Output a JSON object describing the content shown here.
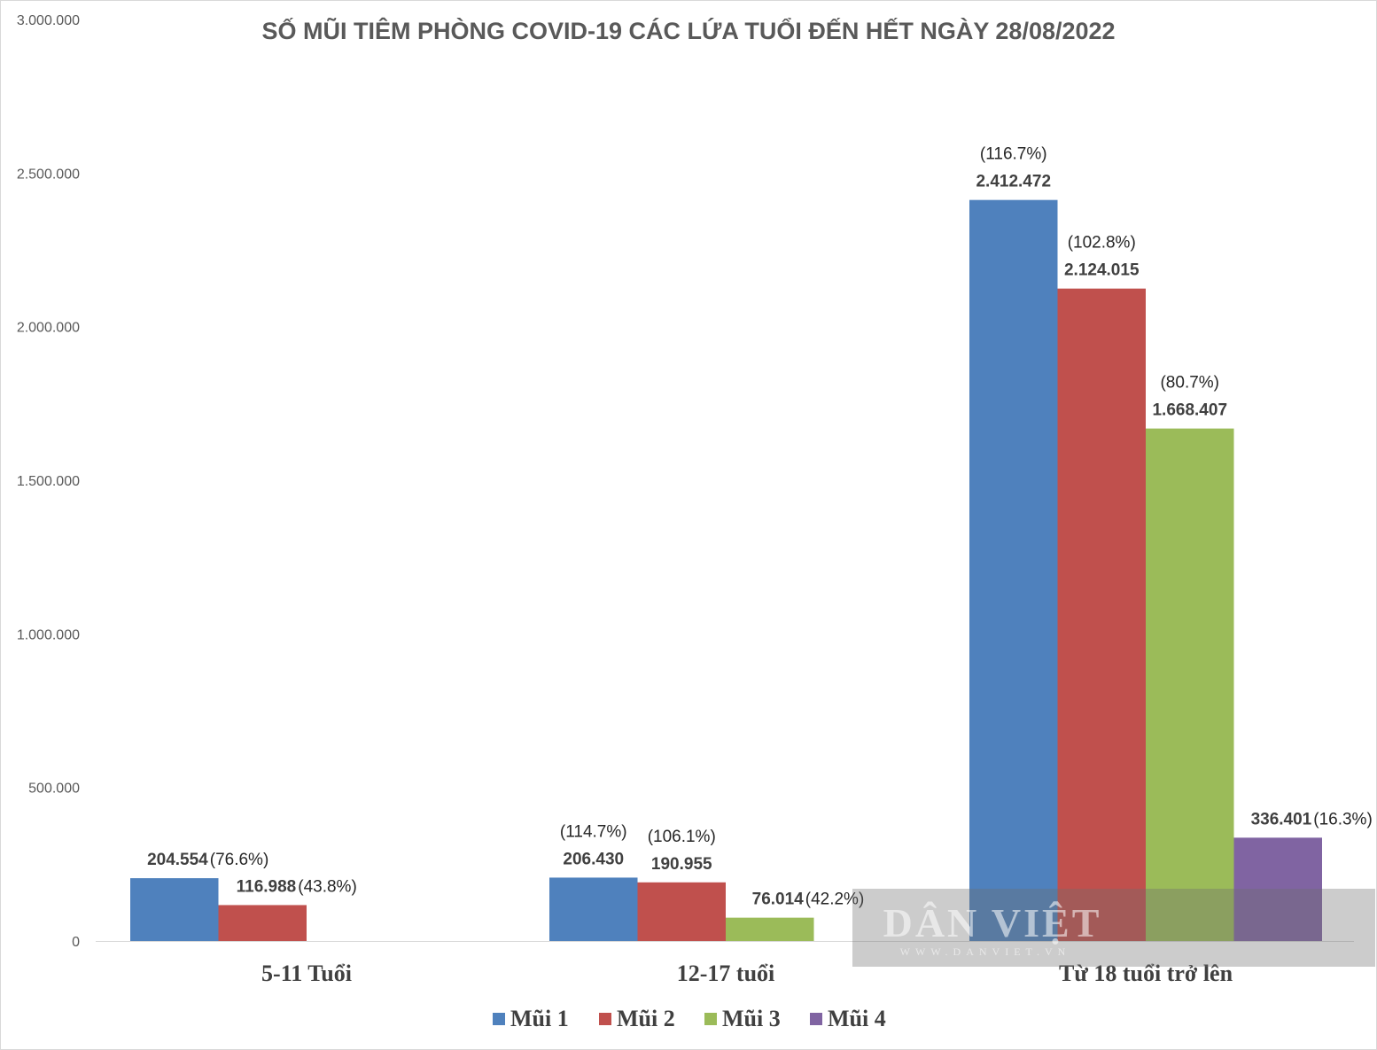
{
  "chart_data": {
    "type": "bar",
    "title": "SỐ MŨI TIÊM PHÒNG COVID-19 CÁC LỨA TUỔI ĐẾN HẾT NGÀY 28/08/2022",
    "xlabel": "",
    "ylabel": "",
    "ylim": [
      0,
      3000000
    ],
    "yticks": [
      0,
      500000,
      1000000,
      1500000,
      2000000,
      2500000,
      3000000
    ],
    "ytick_labels": [
      "0",
      "500.000",
      "1.000.000",
      "1.500.000",
      "2.000.000",
      "2.500.000",
      "3.000.000"
    ],
    "grid": false,
    "legend_position": "bottom",
    "categories": [
      "5-11 Tuổi",
      "12-17 tuổi",
      "Từ 18 tuổi trở lên"
    ],
    "series": [
      {
        "name": "Mũi 1",
        "color": "#4f81bd",
        "values": [
          204554,
          206430,
          2412472
        ],
        "value_labels": [
          "204.554",
          "206.430",
          "2.412.472"
        ],
        "pct_labels": [
          "(76.6%)",
          "(114.7%)",
          "(116.7%)"
        ]
      },
      {
        "name": "Mũi 2",
        "color": "#c0504d",
        "values": [
          116988,
          190955,
          2124015
        ],
        "value_labels": [
          "116.988",
          "190.955",
          "2.124.015"
        ],
        "pct_labels": [
          "(43.8%)",
          "(106.1%)",
          "(102.8%)"
        ]
      },
      {
        "name": "Mũi 3",
        "color": "#9bbb59",
        "values": [
          null,
          76014,
          1668407
        ],
        "value_labels": [
          null,
          "76.014",
          "1.668.407"
        ],
        "pct_labels": [
          null,
          "(42.2%)",
          "(80.7%)"
        ]
      },
      {
        "name": "Mũi 4",
        "color": "#8064a2",
        "values": [
          null,
          null,
          336401
        ],
        "value_labels": [
          null,
          null,
          "336.401"
        ],
        "pct_labels": [
          null,
          null,
          "(16.3%)"
        ]
      }
    ]
  },
  "watermark": {
    "brand": "DÂN VIỆT",
    "site": "WWW.DANVIET.VN"
  }
}
